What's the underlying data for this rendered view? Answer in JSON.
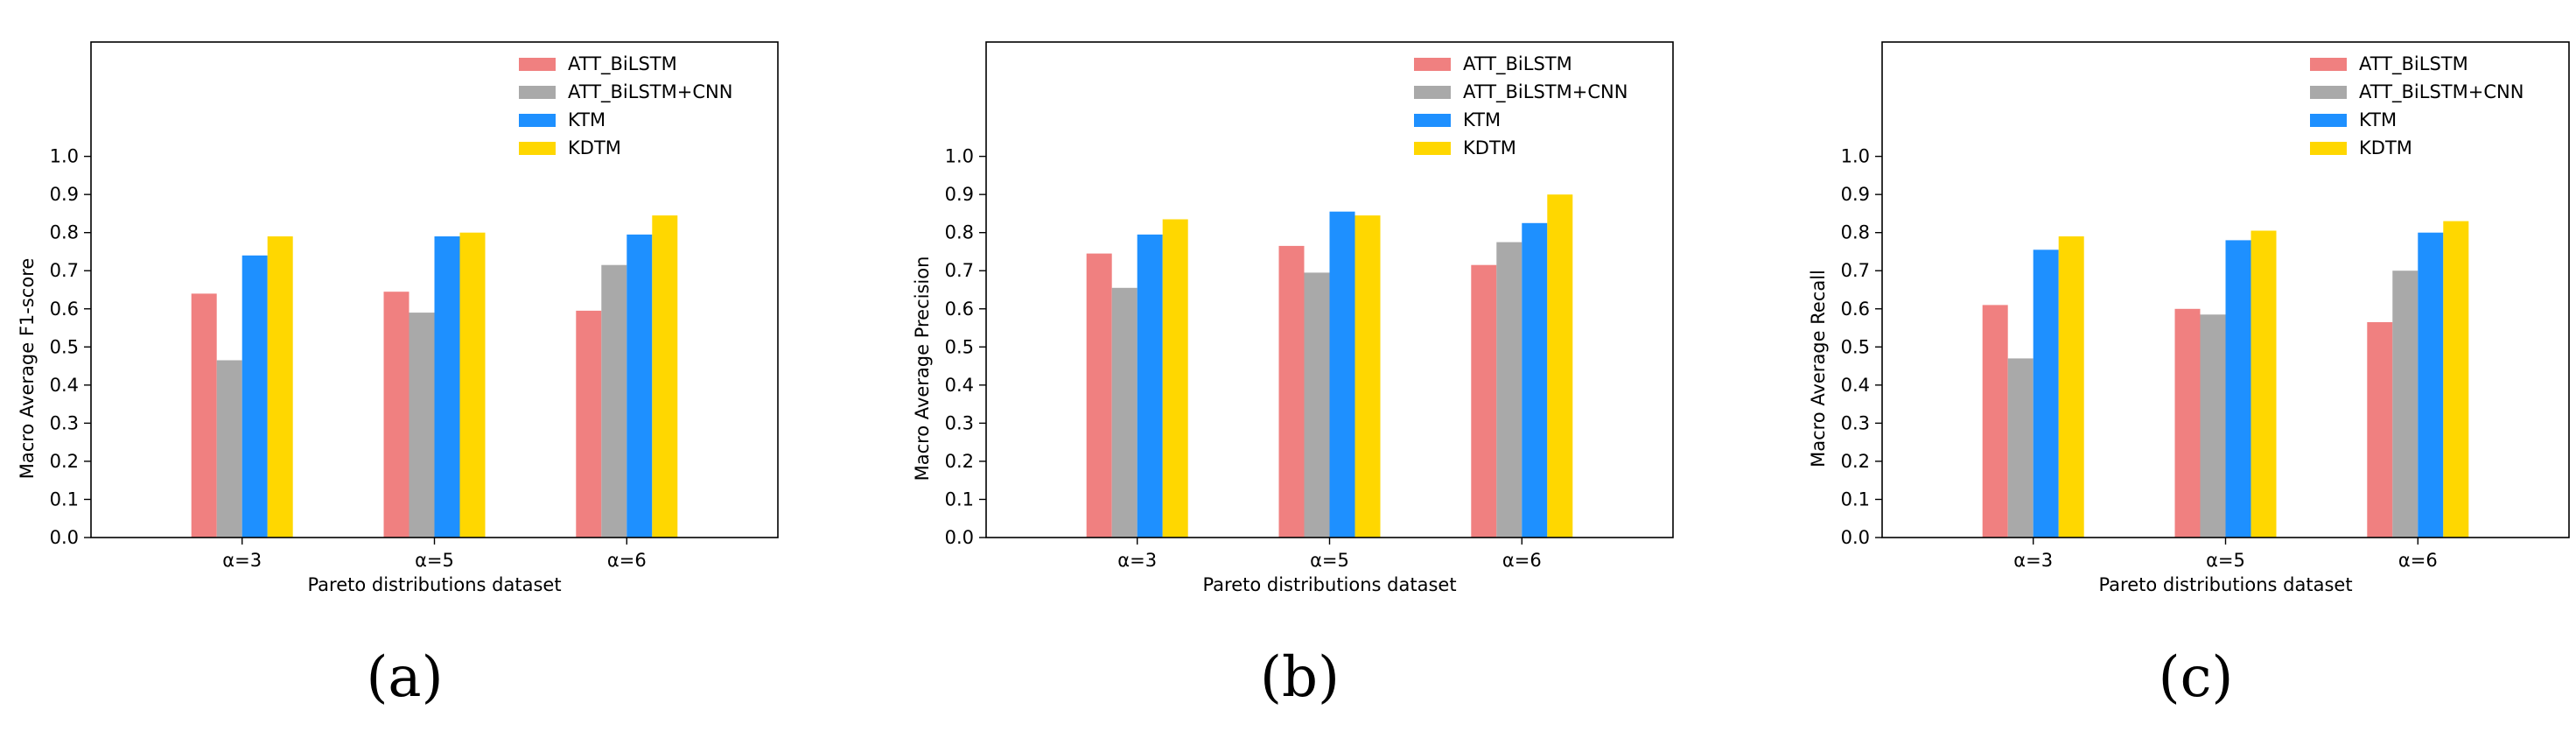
{
  "colors": {
    "ATT_BiLSTM": "#f08080",
    "ATT_BiLSTM+CNN": "#a9a9a9",
    "KTM": "#1e90ff",
    "KDTM": "#ffd700"
  },
  "chart_data": [
    {
      "type": "bar",
      "panel_label": "(a)",
      "title": "",
      "xlabel": "Pareto distributions dataset",
      "ylabel": "Macro Average F1-score",
      "categories": [
        "α=3",
        "α=5",
        "α=6"
      ],
      "yticks": [
        "0.0",
        "0.1",
        "0.2",
        "0.3",
        "0.4",
        "0.5",
        "0.6",
        "0.7",
        "0.8",
        "0.9",
        "1.0"
      ],
      "ylim": [
        0,
        1.3
      ],
      "legend_position": "top-right",
      "series": [
        {
          "name": "ATT_BiLSTM",
          "values": [
            0.64,
            0.645,
            0.595
          ]
        },
        {
          "name": "ATT_BiLSTM+CNN",
          "values": [
            0.465,
            0.59,
            0.715
          ]
        },
        {
          "name": "KTM",
          "values": [
            0.74,
            0.79,
            0.795
          ]
        },
        {
          "name": "KDTM",
          "values": [
            0.79,
            0.8,
            0.845
          ]
        }
      ]
    },
    {
      "type": "bar",
      "panel_label": "(b)",
      "title": "",
      "xlabel": "Pareto distributions dataset",
      "ylabel": "Macro Average Precision",
      "categories": [
        "α=3",
        "α=5",
        "α=6"
      ],
      "yticks": [
        "0.0",
        "0.1",
        "0.2",
        "0.3",
        "0.4",
        "0.5",
        "0.6",
        "0.7",
        "0.8",
        "0.9",
        "1.0"
      ],
      "ylim": [
        0,
        1.3
      ],
      "legend_position": "top-right",
      "series": [
        {
          "name": "ATT_BiLSTM",
          "values": [
            0.745,
            0.765,
            0.715
          ]
        },
        {
          "name": "ATT_BiLSTM+CNN",
          "values": [
            0.655,
            0.695,
            0.775
          ]
        },
        {
          "name": "KTM",
          "values": [
            0.795,
            0.855,
            0.825
          ]
        },
        {
          "name": "KDTM",
          "values": [
            0.835,
            0.845,
            0.9
          ]
        }
      ]
    },
    {
      "type": "bar",
      "panel_label": "(c)",
      "title": "",
      "xlabel": "Pareto distributions dataset",
      "ylabel": "Macro Average Recall",
      "categories": [
        "α=3",
        "α=5",
        "α=6"
      ],
      "yticks": [
        "0.0",
        "0.1",
        "0.2",
        "0.3",
        "0.4",
        "0.5",
        "0.6",
        "0.7",
        "0.8",
        "0.9",
        "1.0"
      ],
      "ylim": [
        0,
        1.3
      ],
      "legend_position": "top-right",
      "series": [
        {
          "name": "ATT_BiLSTM",
          "values": [
            0.61,
            0.6,
            0.565
          ]
        },
        {
          "name": "ATT_BiLSTM+CNN",
          "values": [
            0.47,
            0.585,
            0.7
          ]
        },
        {
          "name": "KTM",
          "values": [
            0.755,
            0.78,
            0.8
          ]
        },
        {
          "name": "KDTM",
          "values": [
            0.79,
            0.805,
            0.83
          ]
        }
      ]
    }
  ]
}
